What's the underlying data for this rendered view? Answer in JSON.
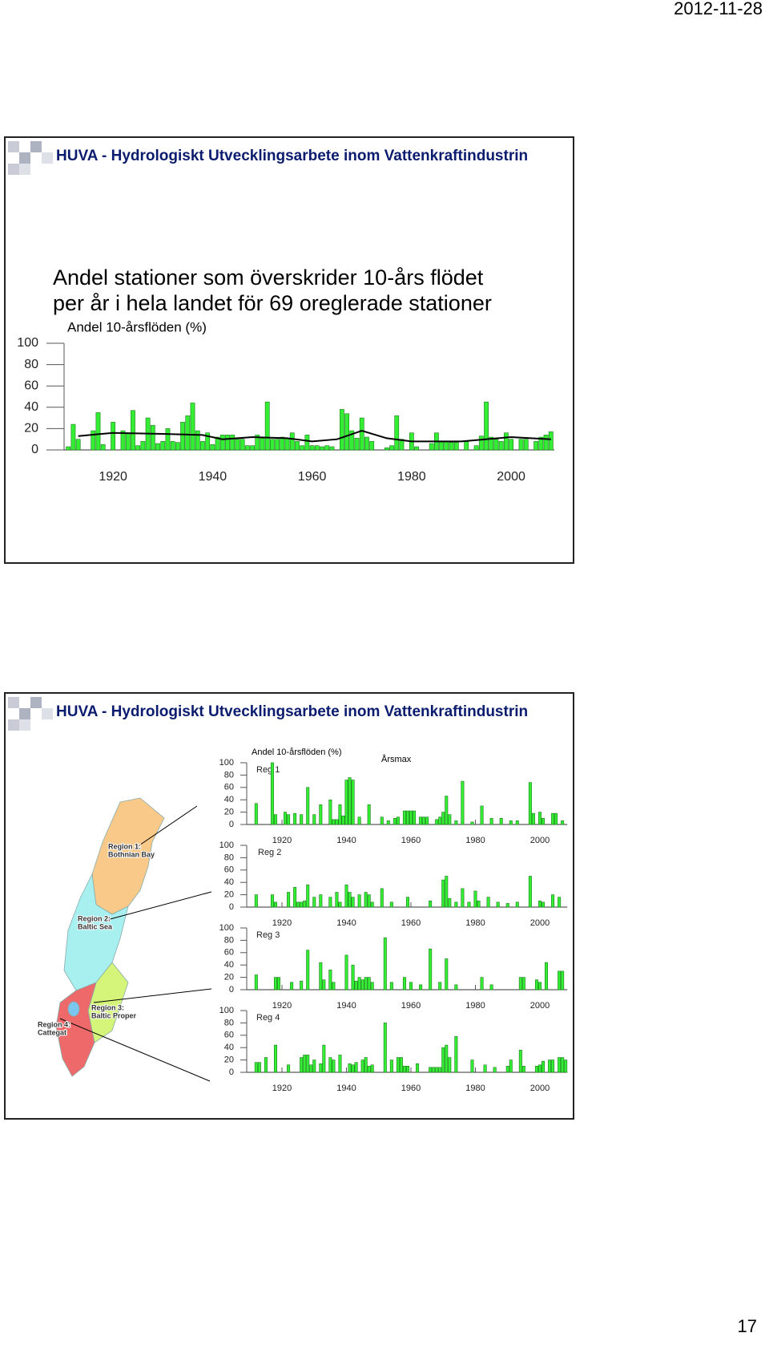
{
  "header": {
    "date": "2012-11-28"
  },
  "footer": {
    "page": "17"
  },
  "slides": [
    {
      "header": "HUVA - Hydrologiskt Utvecklingsarbete inom Vattenkraftindustrin",
      "title": [
        "Andel stationer som överskrider 10-års flödet",
        "per år i hela landet för 69 oreglerade stationer"
      ]
    },
    {
      "header": "HUVA - Hydrologiskt Utvecklingsarbete inom Vattenkraftindustrin",
      "map_labels": [
        [
          "Region 1:",
          "Bothnian Bay"
        ],
        [
          "Region 2:",
          "Baltic Sea"
        ],
        [
          "Region 3:",
          "Baltic Proper"
        ],
        [
          "Region 4:",
          "Cattegat"
        ]
      ]
    }
  ],
  "chart_data": [
    {
      "type": "bar",
      "title": "Andel 10-årsflöden (%)",
      "color": "#33ee33",
      "x": [
        1911,
        1912,
        1913,
        1916,
        1917,
        1918,
        1920,
        1922,
        1923,
        1924,
        1925,
        1926,
        1927,
        1928,
        1929,
        1930,
        1931,
        1932,
        1933,
        1934,
        1935,
        1936,
        1937,
        1938,
        1939,
        1940,
        1941,
        1942,
        1943,
        1944,
        1945,
        1946,
        1947,
        1948,
        1949,
        1950,
        1951,
        1952,
        1953,
        1954,
        1955,
        1956,
        1957,
        1958,
        1959,
        1960,
        1961,
        1962,
        1963,
        1964,
        1966,
        1967,
        1968,
        1969,
        1970,
        1971,
        1972,
        1975,
        1976,
        1977,
        1978,
        1980,
        1981,
        1984,
        1985,
        1986,
        1987,
        1988,
        1989,
        1991,
        1993,
        1994,
        1995,
        1996,
        1997,
        1998,
        1999,
        2000,
        2002,
        2003,
        2005,
        2006,
        2007,
        2008
      ],
      "values": [
        3,
        24,
        10,
        18,
        35,
        5,
        26,
        18,
        16,
        37,
        4,
        8,
        30,
        23,
        6,
        8,
        20,
        8,
        7,
        26,
        32,
        44,
        18,
        8,
        16,
        5,
        12,
        14,
        14,
        14,
        10,
        10,
        4,
        4,
        14,
        11,
        45,
        10,
        10,
        12,
        11,
        16,
        8,
        4,
        14,
        4,
        4,
        3,
        4,
        3,
        38,
        34,
        18,
        11,
        30,
        12,
        8,
        2,
        4,
        32,
        10,
        16,
        3,
        6,
        16,
        8,
        8,
        7,
        7,
        8,
        4,
        13,
        45,
        12,
        10,
        8,
        16,
        10,
        10,
        10,
        8,
        12,
        14,
        17
      ],
      "trend": {
        "x": [
          1913,
          1920,
          1930,
          1938,
          1942,
          1948,
          1955,
          1960,
          1965,
          1970,
          1975,
          1980,
          1990,
          2000,
          2008
        ],
        "values": [
          13,
          16,
          15,
          14,
          10,
          12,
          11,
          8,
          10,
          18,
          11,
          8,
          8,
          12,
          10
        ]
      },
      "xlim": [
        1910,
        2009
      ],
      "xticks": [
        1920,
        1940,
        1960,
        1980,
        2000
      ],
      "ylim": [
        0,
        100
      ],
      "yticks": [
        0,
        20,
        40,
        60,
        80,
        100
      ]
    },
    {
      "type": "bar",
      "title": "Andel 10-årsflöden (%)",
      "annotation": "Årsmax",
      "label": "Reg 1",
      "color": "#33ee33",
      "x": [
        1912,
        1917,
        1918,
        1921,
        1922,
        1924,
        1926,
        1928,
        1930,
        1932,
        1935,
        1936,
        1937,
        1938,
        1939,
        1940,
        1941,
        1942,
        1944,
        1947,
        1951,
        1953,
        1955,
        1956,
        1958,
        1959,
        1960,
        1961,
        1963,
        1964,
        1965,
        1968,
        1969,
        1970,
        1971,
        1972,
        1974,
        1976,
        1979,
        1982,
        1985,
        1988,
        1991,
        1993,
        1997,
        1998,
        2000,
        2001,
        2004,
        2005,
        2007
      ],
      "values": [
        34,
        100,
        16,
        20,
        16,
        18,
        16,
        60,
        16,
        32,
        40,
        8,
        8,
        32,
        14,
        72,
        76,
        72,
        12,
        32,
        12,
        6,
        10,
        12,
        22,
        22,
        22,
        22,
        12,
        12,
        12,
        8,
        12,
        20,
        46,
        16,
        6,
        70,
        4,
        30,
        10,
        10,
        6,
        6,
        68,
        18,
        20,
        10,
        18,
        18,
        6
      ],
      "xlim": [
        1911,
        2009
      ],
      "xticks": [
        1920,
        1940,
        1960,
        1980,
        2000
      ],
      "ylim": [
        0,
        100
      ],
      "yticks": [
        0,
        20,
        40,
        60,
        80,
        100
      ]
    },
    {
      "type": "bar",
      "label": "Reg 2",
      "color": "#33ee33",
      "x": [
        1912,
        1917,
        1918,
        1922,
        1924,
        1925,
        1926,
        1927,
        1928,
        1930,
        1932,
        1935,
        1937,
        1938,
        1940,
        1941,
        1942,
        1944,
        1946,
        1947,
        1948,
        1951,
        1954,
        1959,
        1966,
        1970,
        1971,
        1972,
        1974,
        1976,
        1978,
        1980,
        1981,
        1984,
        1987,
        1990,
        1993,
        1997,
        2000,
        2001,
        2004,
        2006
      ],
      "values": [
        20,
        20,
        8,
        24,
        32,
        8,
        8,
        10,
        36,
        16,
        20,
        16,
        24,
        8,
        36,
        24,
        16,
        20,
        24,
        20,
        8,
        30,
        8,
        16,
        10,
        44,
        50,
        14,
        8,
        30,
        8,
        26,
        10,
        16,
        8,
        6,
        8,
        50,
        10,
        8,
        20,
        16
      ],
      "xlim": [
        1911,
        2009
      ],
      "xticks": [
        1920,
        1940,
        1960,
        1980,
        2000
      ],
      "ylim": [
        0,
        100
      ],
      "yticks": [
        0,
        20,
        40,
        60,
        80,
        100
      ]
    },
    {
      "type": "bar",
      "label": "Reg 3",
      "color": "#33ee33",
      "x": [
        1912,
        1918,
        1919,
        1923,
        1926,
        1928,
        1932,
        1933,
        1935,
        1936,
        1940,
        1942,
        1943,
        1944,
        1945,
        1946,
        1947,
        1948,
        1952,
        1954,
        1958,
        1960,
        1963,
        1966,
        1969,
        1971,
        1974,
        1982,
        1985,
        1994,
        1995,
        1999,
        2000,
        2002,
        2006,
        2007
      ],
      "values": [
        24,
        20,
        20,
        12,
        14,
        64,
        44,
        16,
        32,
        12,
        56,
        40,
        14,
        20,
        16,
        20,
        20,
        12,
        84,
        12,
        20,
        12,
        8,
        66,
        12,
        50,
        8,
        20,
        8,
        20,
        20,
        16,
        12,
        44,
        30,
        30
      ],
      "xlim": [
        1911,
        2009
      ],
      "xticks": [
        1920,
        1940,
        1960,
        1980,
        2000
      ],
      "ylim": [
        0,
        100
      ],
      "yticks": [
        0,
        20,
        40,
        60,
        80,
        100
      ]
    },
    {
      "type": "bar",
      "label": "Reg 4",
      "color": "#33ee33",
      "x": [
        1912,
        1913,
        1915,
        1918,
        1922,
        1926,
        1927,
        1928,
        1929,
        1930,
        1932,
        1933,
        1935,
        1936,
        1938,
        1941,
        1942,
        1943,
        1945,
        1946,
        1947,
        1948,
        1952,
        1954,
        1956,
        1957,
        1958,
        1959,
        1962,
        1966,
        1967,
        1968,
        1969,
        1970,
        1971,
        1972,
        1974,
        1979,
        1983,
        1986,
        1990,
        1991,
        1994,
        1995,
        1999,
        2000,
        2001,
        2003,
        2004,
        2006,
        2007,
        2008
      ],
      "values": [
        16,
        16,
        24,
        44,
        12,
        24,
        28,
        28,
        12,
        20,
        14,
        44,
        24,
        20,
        28,
        14,
        12,
        16,
        20,
        24,
        10,
        12,
        80,
        20,
        24,
        24,
        10,
        10,
        14,
        8,
        8,
        8,
        8,
        40,
        44,
        24,
        58,
        20,
        12,
        8,
        10,
        20,
        36,
        10,
        10,
        12,
        18,
        20,
        20,
        24,
        24,
        20
      ],
      "xlim": [
        1911,
        2009
      ],
      "xticks": [
        1920,
        1940,
        1960,
        1980,
        2000
      ],
      "ylim": [
        0,
        100
      ],
      "yticks": [
        0,
        20,
        40,
        60,
        80,
        100
      ]
    }
  ]
}
